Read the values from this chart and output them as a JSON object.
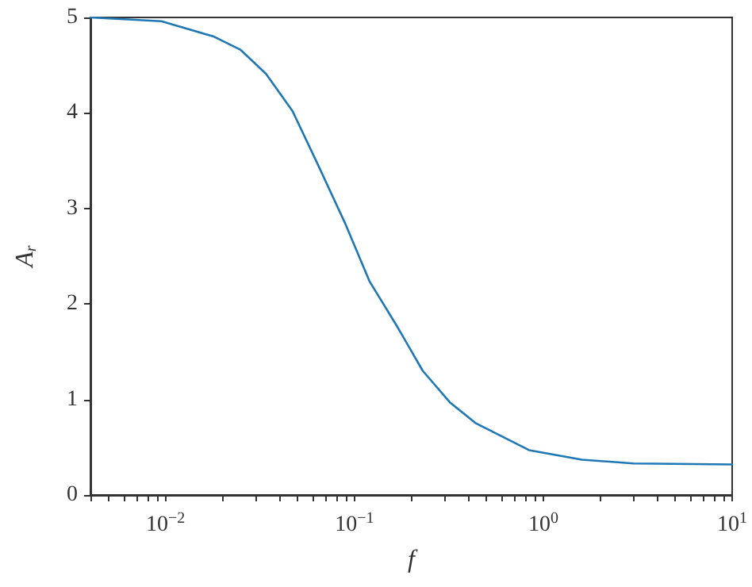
{
  "chart_data": {
    "type": "line",
    "xlabel": "f",
    "ylabel": "A$_{r}$",
    "log": "x",
    "grid": false,
    "marker": "none",
    "line_style": "solid",
    "x": [
      0.004,
      0.0095,
      0.018,
      0.025,
      0.034,
      0.047,
      0.064,
      0.089,
      0.12,
      0.17,
      0.23,
      0.32,
      0.44,
      0.84,
      1.6,
      3.0,
      10
    ],
    "series": [
      {
        "color": "#1f77b4",
        "values": [
          5.0,
          4.96,
          4.8,
          4.66,
          4.41,
          4.02,
          3.46,
          2.85,
          2.24,
          1.75,
          1.3,
          0.97,
          0.75,
          0.47,
          0.37,
          0.33,
          0.32
        ]
      }
    ],
    "xlim": [
      0.004,
      10
    ],
    "ylim": [
      0,
      5
    ],
    "yticks": [
      0,
      1,
      2,
      3,
      4,
      5
    ],
    "xticks": [
      {
        "value": 0.004,
        "label": null
      },
      {
        "value": 0.005,
        "label": null
      },
      {
        "value": 0.006,
        "label": null
      },
      {
        "value": 0.007,
        "label": null
      },
      {
        "value": 0.008,
        "label": null
      },
      {
        "value": 0.009,
        "label": null
      },
      {
        "value": 0.01,
        "label": "10$^{−2}$"
      },
      {
        "value": 0.02,
        "label": null
      },
      {
        "value": 0.03,
        "label": null
      },
      {
        "value": 0.04,
        "label": null
      },
      {
        "value": 0.05,
        "label": null
      },
      {
        "value": 0.06,
        "label": null
      },
      {
        "value": 0.07,
        "label": null
      },
      {
        "value": 0.08,
        "label": null
      },
      {
        "value": 0.09,
        "label": null
      },
      {
        "value": 0.1,
        "label": "10$^{−1}$"
      },
      {
        "value": 0.2,
        "label": null
      },
      {
        "value": 0.3,
        "label": null
      },
      {
        "value": 0.4,
        "label": null
      },
      {
        "value": 0.5,
        "label": null
      },
      {
        "value": 0.6,
        "label": null
      },
      {
        "value": 0.7,
        "label": null
      },
      {
        "value": 0.8,
        "label": null
      },
      {
        "value": 0.9,
        "label": null
      },
      {
        "value": 1,
        "label": "10$^{0}$"
      },
      {
        "value": 2,
        "label": null
      },
      {
        "value": 3,
        "label": null
      },
      {
        "value": 4,
        "label": null
      },
      {
        "value": 5,
        "label": null
      },
      {
        "value": 6,
        "label": null
      },
      {
        "value": 7,
        "label": null
      },
      {
        "value": 8,
        "label": null
      },
      {
        "value": 9,
        "label": null
      },
      {
        "value": 10,
        "label": "10$^{1}$"
      }
    ]
  }
}
